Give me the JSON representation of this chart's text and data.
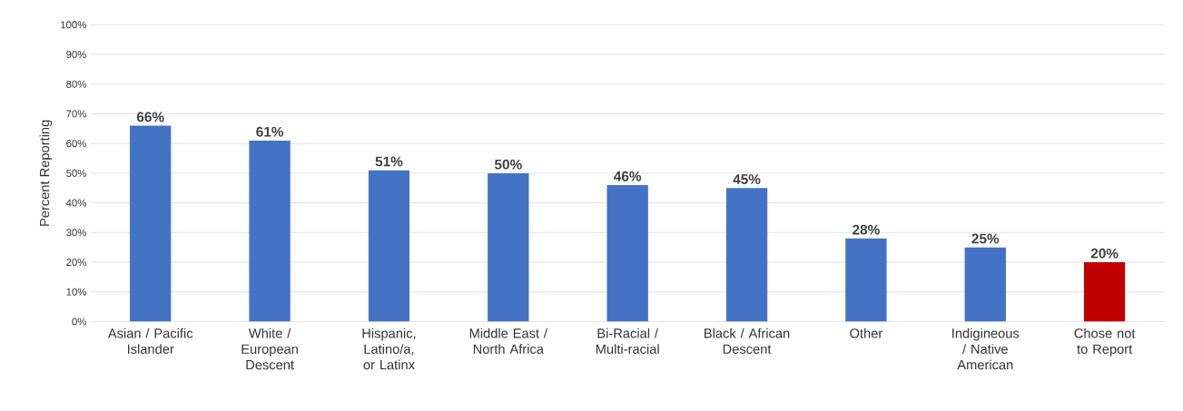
{
  "chart_data": {
    "type": "bar",
    "ylabel": "Percent Reporting",
    "categories": [
      "Asian / Pacific Islander",
      "White / European Descent",
      "Hispanic, Latino/a, or Latinx",
      "Middle East / North Africa",
      "Bi-Racial / Multi-racial",
      "Black / African Descent",
      "Other",
      "Indigineous / Native American",
      "Chose not to Report"
    ],
    "values": [
      66,
      61,
      51,
      50,
      46,
      45,
      28,
      25,
      20
    ],
    "colors": [
      "#4472c4",
      "#4472c4",
      "#4472c4",
      "#4472c4",
      "#4472c4",
      "#4472c4",
      "#4472c4",
      "#4472c4",
      "#c00000"
    ],
    "value_labels": [
      "66%",
      "61%",
      "51%",
      "50%",
      "46%",
      "45%",
      "28%",
      "25%",
      "20%"
    ],
    "ylim": [
      0,
      100
    ],
    "yticks": [
      {
        "value": 0,
        "label": "0%"
      },
      {
        "value": 10,
        "label": "10%"
      },
      {
        "value": 20,
        "label": "20%"
      },
      {
        "value": 30,
        "label": "30%"
      },
      {
        "value": 40,
        "label": "40%"
      },
      {
        "value": 50,
        "label": "50%"
      },
      {
        "value": 60,
        "label": "60%"
      },
      {
        "value": 70,
        "label": "70%"
      },
      {
        "value": 80,
        "label": "80%"
      },
      {
        "value": 90,
        "label": "90%"
      },
      {
        "value": 100,
        "label": "100%"
      }
    ],
    "grid": "y"
  }
}
